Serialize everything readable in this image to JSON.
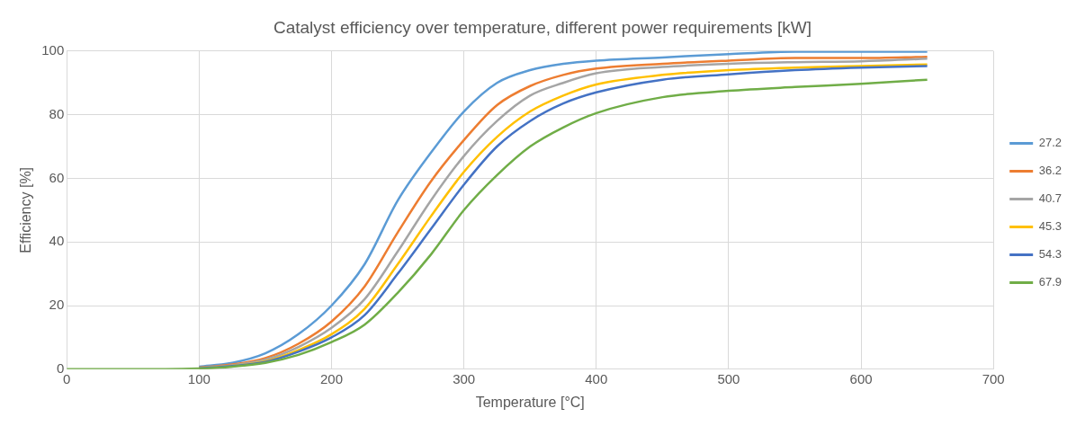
{
  "chart_data": {
    "type": "line",
    "title": "Catalyst efficiency over temperature, different power requirements [kW]",
    "xlabel": "Temperature [°C]",
    "ylabel": "Efficiency [%]",
    "x": [
      0,
      50,
      75,
      100,
      125,
      150,
      175,
      200,
      225,
      250,
      275,
      300,
      325,
      350,
      375,
      400,
      450,
      500,
      550,
      600,
      650
    ],
    "xlim": [
      0,
      700
    ],
    "xticks": [
      0,
      100,
      200,
      300,
      400,
      500,
      600,
      700
    ],
    "ylim": [
      0,
      100
    ],
    "yticks": [
      0,
      20,
      40,
      60,
      80,
      100
    ],
    "grid": true,
    "legend": "right",
    "marker": "none",
    "line_style": "solid",
    "series": [
      {
        "name": "27.2",
        "color": "#5b9bd5",
        "values": [
          null,
          null,
          null,
          0.8,
          2,
          5,
          11,
          20,
          33,
          53,
          68,
          81,
          90,
          94,
          96,
          97,
          98,
          99,
          99.8,
          99.8,
          99.8
        ]
      },
      {
        "name": "36.2",
        "color": "#ed7d31",
        "values": [
          null,
          null,
          null,
          0.5,
          1.5,
          3.5,
          8,
          15,
          26,
          43,
          59,
          72,
          83,
          89,
          92.5,
          94.5,
          96,
          97,
          97.8,
          97.8,
          98.2
        ]
      },
      {
        "name": "40.7",
        "color": "#a5a5a5",
        "values": [
          null,
          null,
          null,
          0.4,
          1.2,
          3,
          7,
          13,
          22,
          37,
          53,
          67,
          78,
          86,
          90,
          93,
          95,
          96,
          96.5,
          96.8,
          97.6
        ]
      },
      {
        "name": "45.3",
        "color": "#ffc000",
        "values": [
          null,
          null,
          null,
          0.3,
          1,
          2.5,
          6,
          11,
          19,
          33,
          48,
          62,
          73,
          81,
          86,
          89.5,
          92.5,
          94,
          94.8,
          95.3,
          95.8
        ]
      },
      {
        "name": "54.3",
        "color": "#4472c4",
        "values": [
          null,
          null,
          null,
          0.3,
          1,
          2.3,
          5.5,
          10,
          17,
          30,
          44,
          58,
          70,
          78,
          83.5,
          87,
          91,
          92.7,
          94,
          94.8,
          95.3
        ]
      },
      {
        "name": "67.9",
        "color": "#70ad47",
        "values": [
          0,
          0,
          0,
          0.2,
          0.8,
          2,
          4.5,
          8.5,
          14,
          24,
          36,
          50,
          61,
          70,
          76,
          80.5,
          85.5,
          87.5,
          88.7,
          89.7,
          91
        ]
      }
    ]
  }
}
